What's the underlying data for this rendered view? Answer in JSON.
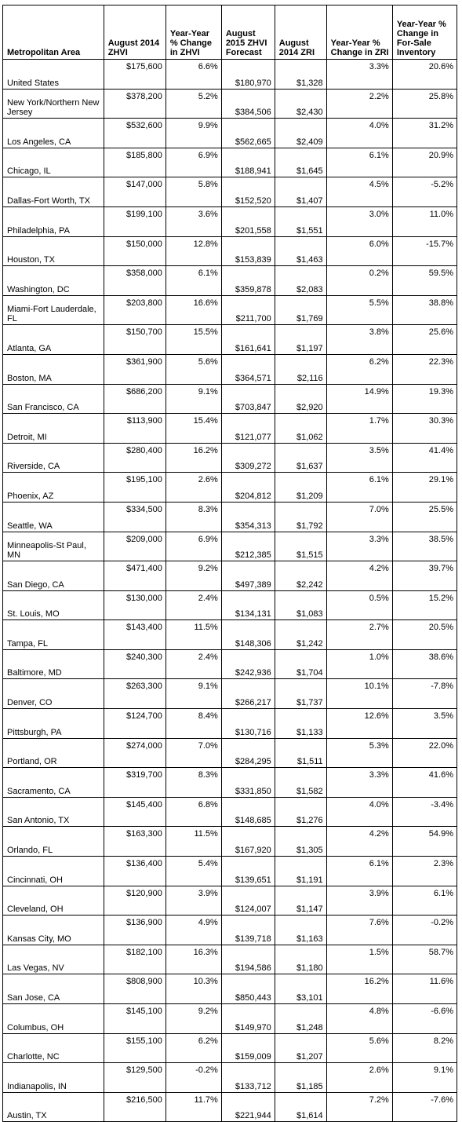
{
  "headers": [
    "Metropolitan Area",
    "August 2014 ZHVI",
    "Year-Year % Change in ZHVI",
    "August 2015 ZHVI Forecast",
    "August 2014 ZRI",
    "Year-Year % Change in ZRI",
    "Year-Year % Change in For-Sale Inventory"
  ],
  "rows": [
    [
      "United States",
      "$175,600",
      "6.6%",
      "$180,970",
      "$1,328",
      "3.3%",
      "20.6%"
    ],
    [
      "New York/Northern New Jersey",
      "$378,200",
      "5.2%",
      "$384,506",
      "$2,430",
      "2.2%",
      "25.8%"
    ],
    [
      "Los Angeles, CA",
      "$532,600",
      "9.9%",
      "$562,665",
      "$2,409",
      "4.0%",
      "31.2%"
    ],
    [
      "Chicago, IL",
      "$185,800",
      "6.9%",
      "$188,941",
      "$1,645",
      "6.1%",
      "20.9%"
    ],
    [
      "Dallas-Fort Worth, TX",
      "$147,000",
      "5.8%",
      "$152,520",
      "$1,407",
      "4.5%",
      "-5.2%"
    ],
    [
      "Philadelphia, PA",
      "$199,100",
      "3.6%",
      "$201,558",
      "$1,551",
      "3.0%",
      "11.0%"
    ],
    [
      "Houston, TX",
      "$150,000",
      "12.8%",
      "$153,839",
      "$1,463",
      "6.0%",
      "-15.7%"
    ],
    [
      "Washington, DC",
      "$358,000",
      "6.1%",
      "$359,878",
      "$2,083",
      "0.2%",
      "59.5%"
    ],
    [
      "Miami-Fort Lauderdale, FL",
      "$203,800",
      "16.6%",
      "$211,700",
      "$1,769",
      "5.5%",
      "38.8%"
    ],
    [
      "Atlanta, GA",
      "$150,700",
      "15.5%",
      "$161,641",
      "$1,197",
      "3.8%",
      "25.6%"
    ],
    [
      "Boston, MA",
      "$361,900",
      "5.6%",
      "$364,571",
      "$2,116",
      "6.2%",
      "22.3%"
    ],
    [
      "San Francisco, CA",
      "$686,200",
      "9.1%",
      "$703,847",
      "$2,920",
      "14.9%",
      "19.3%"
    ],
    [
      "Detroit, MI",
      "$113,900",
      "15.4%",
      "$121,077",
      "$1,062",
      "1.7%",
      "30.3%"
    ],
    [
      "Riverside, CA",
      "$280,400",
      "16.2%",
      "$309,272",
      "$1,637",
      "3.5%",
      "41.4%"
    ],
    [
      "Phoenix, AZ",
      "$195,100",
      "2.6%",
      "$204,812",
      "$1,209",
      "6.1%",
      "29.1%"
    ],
    [
      "Seattle, WA",
      "$334,500",
      "8.3%",
      "$354,313",
      "$1,792",
      "7.0%",
      "25.5%"
    ],
    [
      "Minneapolis-St Paul, MN",
      "$209,000",
      "6.9%",
      "$212,385",
      "$1,515",
      "3.3%",
      "38.5%"
    ],
    [
      "San Diego, CA",
      "$471,400",
      "9.2%",
      "$497,389",
      "$2,242",
      "4.2%",
      "39.7%"
    ],
    [
      "St. Louis, MO",
      "$130,000",
      "2.4%",
      "$134,131",
      "$1,083",
      "0.5%",
      "15.2%"
    ],
    [
      "Tampa, FL",
      "$143,400",
      "11.5%",
      "$148,306",
      "$1,242",
      "2.7%",
      "20.5%"
    ],
    [
      "Baltimore, MD",
      "$240,300",
      "2.4%",
      "$242,936",
      "$1,704",
      "1.0%",
      "38.6%"
    ],
    [
      "Denver, CO",
      "$263,300",
      "9.1%",
      "$266,217",
      "$1,737",
      "10.1%",
      "-7.8%"
    ],
    [
      "Pittsburgh, PA",
      "$124,700",
      "8.4%",
      "$130,716",
      "$1,133",
      "12.6%",
      "3.5%"
    ],
    [
      "Portland, OR",
      "$274,000",
      "7.0%",
      "$284,295",
      "$1,511",
      "5.3%",
      "22.0%"
    ],
    [
      "Sacramento, CA",
      "$319,700",
      "8.3%",
      "$331,850",
      "$1,582",
      "3.3%",
      "41.6%"
    ],
    [
      "San Antonio, TX",
      "$145,400",
      "6.8%",
      "$148,685",
      "$1,276",
      "4.0%",
      "-3.4%"
    ],
    [
      "Orlando, FL",
      "$163,300",
      "11.5%",
      "$167,920",
      "$1,305",
      "4.2%",
      "54.9%"
    ],
    [
      "Cincinnati, OH",
      "$136,400",
      "5.4%",
      "$139,651",
      "$1,191",
      "6.1%",
      "2.3%"
    ],
    [
      "Cleveland, OH",
      "$120,900",
      "3.9%",
      "$124,007",
      "$1,147",
      "3.9%",
      "6.1%"
    ],
    [
      "Kansas City, MO",
      "$136,900",
      "4.9%",
      "$139,718",
      "$1,163",
      "7.6%",
      "-0.2%"
    ],
    [
      "Las Vegas, NV",
      "$182,100",
      "16.3%",
      "$194,586",
      "$1,180",
      "1.5%",
      "58.7%"
    ],
    [
      "San Jose, CA",
      "$808,900",
      "10.3%",
      "$850,443",
      "$3,101",
      "16.2%",
      "11.6%"
    ],
    [
      "Columbus, OH",
      "$145,100",
      "9.2%",
      "$149,970",
      "$1,248",
      "4.8%",
      "-6.6%"
    ],
    [
      "Charlotte, NC",
      "$155,100",
      "6.2%",
      "$159,009",
      "$1,207",
      "5.6%",
      "8.2%"
    ],
    [
      "Indianapolis, IN",
      "$129,500",
      "-0.2%",
      "$133,712",
      "$1,185",
      "2.6%",
      "9.1%"
    ],
    [
      "Austin, TX",
      "$216,500",
      "11.7%",
      "$221,944",
      "$1,614",
      "7.2%",
      "-7.6%"
    ]
  ]
}
